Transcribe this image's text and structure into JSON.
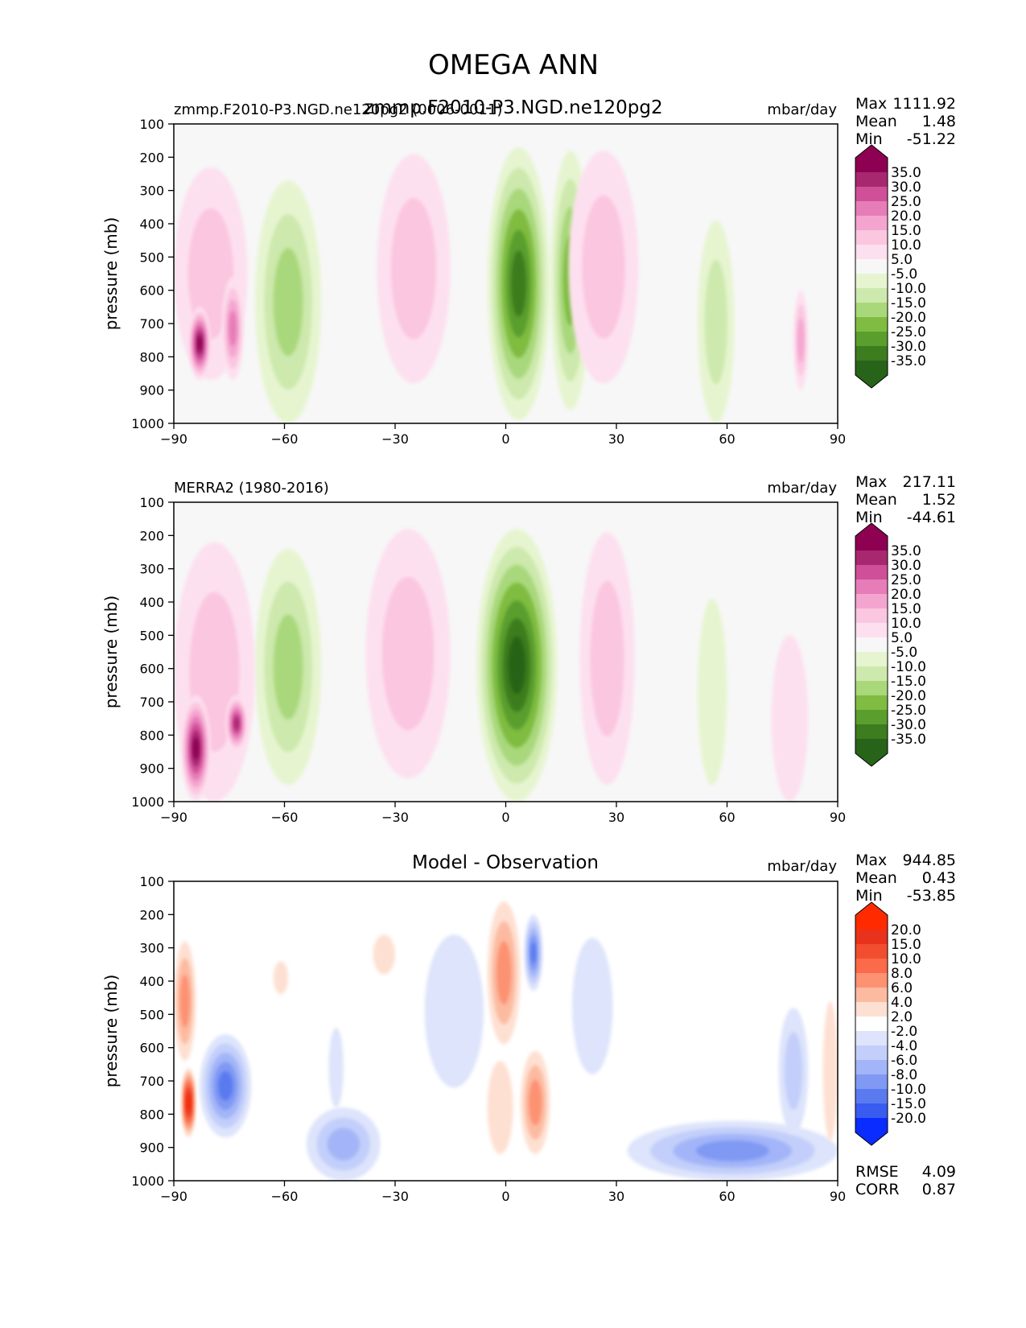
{
  "figure_title": "OMEGA ANN",
  "colors": {
    "bg_field": "#f7f7f7",
    "axis": "#000000",
    "pink": [
      "#fde0ef",
      "#fbc6e0",
      "#f4a5cf",
      "#e67db8",
      "#cf4f99",
      "#a8286f",
      "#8e0152"
    ],
    "green": [
      "#e6f5d0",
      "#cde9ad",
      "#a9d87b",
      "#7fbc41",
      "#5a9e2e",
      "#3d7c1f",
      "#276419"
    ],
    "red": [
      "#fee0d2",
      "#fcbba1",
      "#fc9272",
      "#fb6a4a",
      "#f24d2f",
      "#e8321b",
      "#ff2a00"
    ],
    "blue": [
      "#dde4fb",
      "#c3cffa",
      "#a3b5f8",
      "#8099f3",
      "#5a7af0",
      "#3a5bf0",
      "#0a2cff"
    ]
  },
  "chart_data": [
    {
      "type": "heatmap",
      "id": "test",
      "left_title": "zmmp.F2010-P3.NGD.ne120pg2 (0006-0011)",
      "center_title": "zmmp.F2010-P3.NGD.ne120pg2",
      "units": "mbar/day",
      "ylabel": "pressure (mb)",
      "x_ticks": [
        "−90",
        "−60",
        "−30",
        "0",
        "30",
        "60",
        "90"
      ],
      "y_ticks": [
        "100",
        "200",
        "300",
        "400",
        "500",
        "600",
        "700",
        "800",
        "900",
        "1000"
      ],
      "xlim": [
        -90,
        90
      ],
      "ylim": [
        1000,
        100
      ],
      "stats": [
        {
          "label": "Max",
          "value": "1111.92"
        },
        {
          "label": "Mean",
          "value": "1.48"
        },
        {
          "label": "Min",
          "value": "-51.22"
        }
      ],
      "colorbar_levels": [
        "35.0",
        "30.0",
        "25.0",
        "20.0",
        "15.0",
        "10.0",
        "5.0",
        "-5.0",
        "-10.0",
        "-15.0",
        "-20.0",
        "-25.0",
        "-30.0",
        "-35.0"
      ],
      "colorbar_scheme": "pinkgreen",
      "features": [
        {
          "lat0": -35,
          "lat1": -15,
          "p0": 190,
          "p1": 880,
          "sign": 1,
          "levels": 2
        },
        {
          "lat0": -5,
          "lat1": 12,
          "p0": 170,
          "p1": 990,
          "sign": -1,
          "levels": 6
        },
        {
          "lat0": 12,
          "lat1": 23,
          "p0": 180,
          "p1": 960,
          "sign": -1,
          "levels": 4
        },
        {
          "lat0": -68,
          "lat1": -50,
          "p0": 270,
          "p1": 1000,
          "sign": -1,
          "levels": 3
        },
        {
          "lat0": 17,
          "lat1": 36,
          "p0": 180,
          "p1": 880,
          "sign": 1,
          "levels": 2
        },
        {
          "lat0": 52,
          "lat1": 62,
          "p0": 390,
          "p1": 1000,
          "sign": -1,
          "levels": 2
        },
        {
          "lat0": -90,
          "lat1": -70,
          "p0": 230,
          "p1": 870,
          "sign": 1,
          "levels": 2
        },
        {
          "lat0": -86,
          "lat1": -80,
          "p0": 650,
          "p1": 870,
          "sign": 1,
          "levels": 7
        },
        {
          "lat0": -77,
          "lat1": -71,
          "p0": 560,
          "p1": 870,
          "sign": 1,
          "levels": 4
        },
        {
          "lat0": 78,
          "lat1": 82,
          "p0": 600,
          "p1": 900,
          "sign": 1,
          "levels": 3
        }
      ]
    },
    {
      "type": "heatmap",
      "id": "reference",
      "left_title": "MERRA2 (1980-2016)",
      "center_title": "",
      "units": "mbar/day",
      "ylabel": "pressure (mb)",
      "x_ticks": [
        "−90",
        "−60",
        "−30",
        "0",
        "30",
        "60",
        "90"
      ],
      "y_ticks": [
        "100",
        "200",
        "300",
        "400",
        "500",
        "600",
        "700",
        "800",
        "900",
        "1000"
      ],
      "xlim": [
        -90,
        90
      ],
      "ylim": [
        1000,
        100
      ],
      "stats": [
        {
          "label": "Max",
          "value": "217.11"
        },
        {
          "label": "Mean",
          "value": "1.52"
        },
        {
          "label": "Min",
          "value": "-44.61"
        }
      ],
      "colorbar_levels": [
        "35.0",
        "30.0",
        "25.0",
        "20.0",
        "15.0",
        "10.0",
        "5.0",
        "-5.0",
        "-10.0",
        "-15.0",
        "-20.0",
        "-25.0",
        "-30.0",
        "-35.0"
      ],
      "colorbar_scheme": "pinkgreen",
      "features": [
        {
          "lat0": -38,
          "lat1": -15,
          "p0": 180,
          "p1": 930,
          "sign": 1,
          "levels": 2
        },
        {
          "lat0": -8,
          "lat1": 14,
          "p0": 180,
          "p1": 1000,
          "sign": -1,
          "levels": 7
        },
        {
          "lat0": 20,
          "lat1": 35,
          "p0": 190,
          "p1": 950,
          "sign": 1,
          "levels": 2
        },
        {
          "lat0": -68,
          "lat1": -50,
          "p0": 240,
          "p1": 950,
          "sign": -1,
          "levels": 3
        },
        {
          "lat0": 52,
          "lat1": 60,
          "p0": 390,
          "p1": 950,
          "sign": -1,
          "levels": 1
        },
        {
          "lat0": -90,
          "lat1": -68,
          "p0": 220,
          "p1": 1000,
          "sign": 1,
          "levels": 2
        },
        {
          "lat0": -88,
          "lat1": -80,
          "p0": 680,
          "p1": 1000,
          "sign": 1,
          "levels": 7
        },
        {
          "lat0": -76,
          "lat1": -70,
          "p0": 680,
          "p1": 850,
          "sign": 1,
          "levels": 6
        },
        {
          "lat0": 72,
          "lat1": 82,
          "p0": 500,
          "p1": 1000,
          "sign": 1,
          "levels": 1
        }
      ]
    },
    {
      "type": "heatmap",
      "id": "difference",
      "left_title": "",
      "center_title": "Model - Observation",
      "units": "mbar/day",
      "ylabel": "pressure (mb)",
      "x_ticks": [
        "−90",
        "−60",
        "−30",
        "0",
        "30",
        "60",
        "90"
      ],
      "y_ticks": [
        "100",
        "200",
        "300",
        "400",
        "500",
        "600",
        "700",
        "800",
        "900",
        "1000"
      ],
      "xlim": [
        -90,
        90
      ],
      "ylim": [
        1000,
        100
      ],
      "stats": [
        {
          "label": "Max",
          "value": "944.85"
        },
        {
          "label": "Mean",
          "value": "0.43"
        },
        {
          "label": "Min",
          "value": "-53.85"
        }
      ],
      "metrics": [
        {
          "label": "RMSE",
          "value": "4.09"
        },
        {
          "label": "CORR",
          "value": "0.87"
        }
      ],
      "colorbar_levels": [
        "20.0",
        "15.0",
        "10.0",
        "8.0",
        "6.0",
        "4.0",
        "2.0",
        "-2.0",
        "-4.0",
        "-6.0",
        "-8.0",
        "-10.0",
        "-15.0",
        "-20.0"
      ],
      "colorbar_scheme": "redblue",
      "features": [
        {
          "lat0": -5,
          "lat1": 4,
          "p0": 160,
          "p1": 590,
          "sign": 1,
          "levels": 3
        },
        {
          "lat0": 5,
          "lat1": 10,
          "p0": 200,
          "p1": 430,
          "sign": -1,
          "levels": 5
        },
        {
          "lat0": 4,
          "lat1": 12,
          "p0": 610,
          "p1": 920,
          "sign": 1,
          "levels": 3
        },
        {
          "lat0": -5,
          "lat1": 2,
          "p0": 640,
          "p1": 920,
          "sign": 1,
          "levels": 1
        },
        {
          "lat0": -22,
          "lat1": -6,
          "p0": 260,
          "p1": 720,
          "sign": -1,
          "levels": 1
        },
        {
          "lat0": 18,
          "lat1": 29,
          "p0": 270,
          "p1": 680,
          "sign": -1,
          "levels": 1
        },
        {
          "lat0": -36,
          "lat1": -30,
          "p0": 260,
          "p1": 380,
          "sign": 1,
          "levels": 1
        },
        {
          "lat0": -63,
          "lat1": -59,
          "p0": 340,
          "p1": 440,
          "sign": 1,
          "levels": 1
        },
        {
          "lat0": -90,
          "lat1": -84,
          "p0": 280,
          "p1": 640,
          "sign": 1,
          "levels": 3
        },
        {
          "lat0": -88,
          "lat1": -84,
          "p0": 660,
          "p1": 870,
          "sign": 1,
          "levels": 7
        },
        {
          "lat0": -83,
          "lat1": -69,
          "p0": 560,
          "p1": 870,
          "sign": -1,
          "levels": 5
        },
        {
          "lat0": -54,
          "lat1": -34,
          "p0": 780,
          "p1": 1000,
          "sign": -1,
          "levels": 3
        },
        {
          "lat0": -48,
          "lat1": -44,
          "p0": 540,
          "p1": 780,
          "sign": -1,
          "levels": 1
        },
        {
          "lat0": 33,
          "lat1": 90,
          "p0": 820,
          "p1": 1000,
          "sign": -1,
          "levels": 4
        },
        {
          "lat0": 74,
          "lat1": 82,
          "p0": 480,
          "p1": 860,
          "sign": -1,
          "levels": 2
        },
        {
          "lat0": 86,
          "lat1": 90,
          "p0": 460,
          "p1": 880,
          "sign": 1,
          "levels": 1
        }
      ]
    }
  ]
}
